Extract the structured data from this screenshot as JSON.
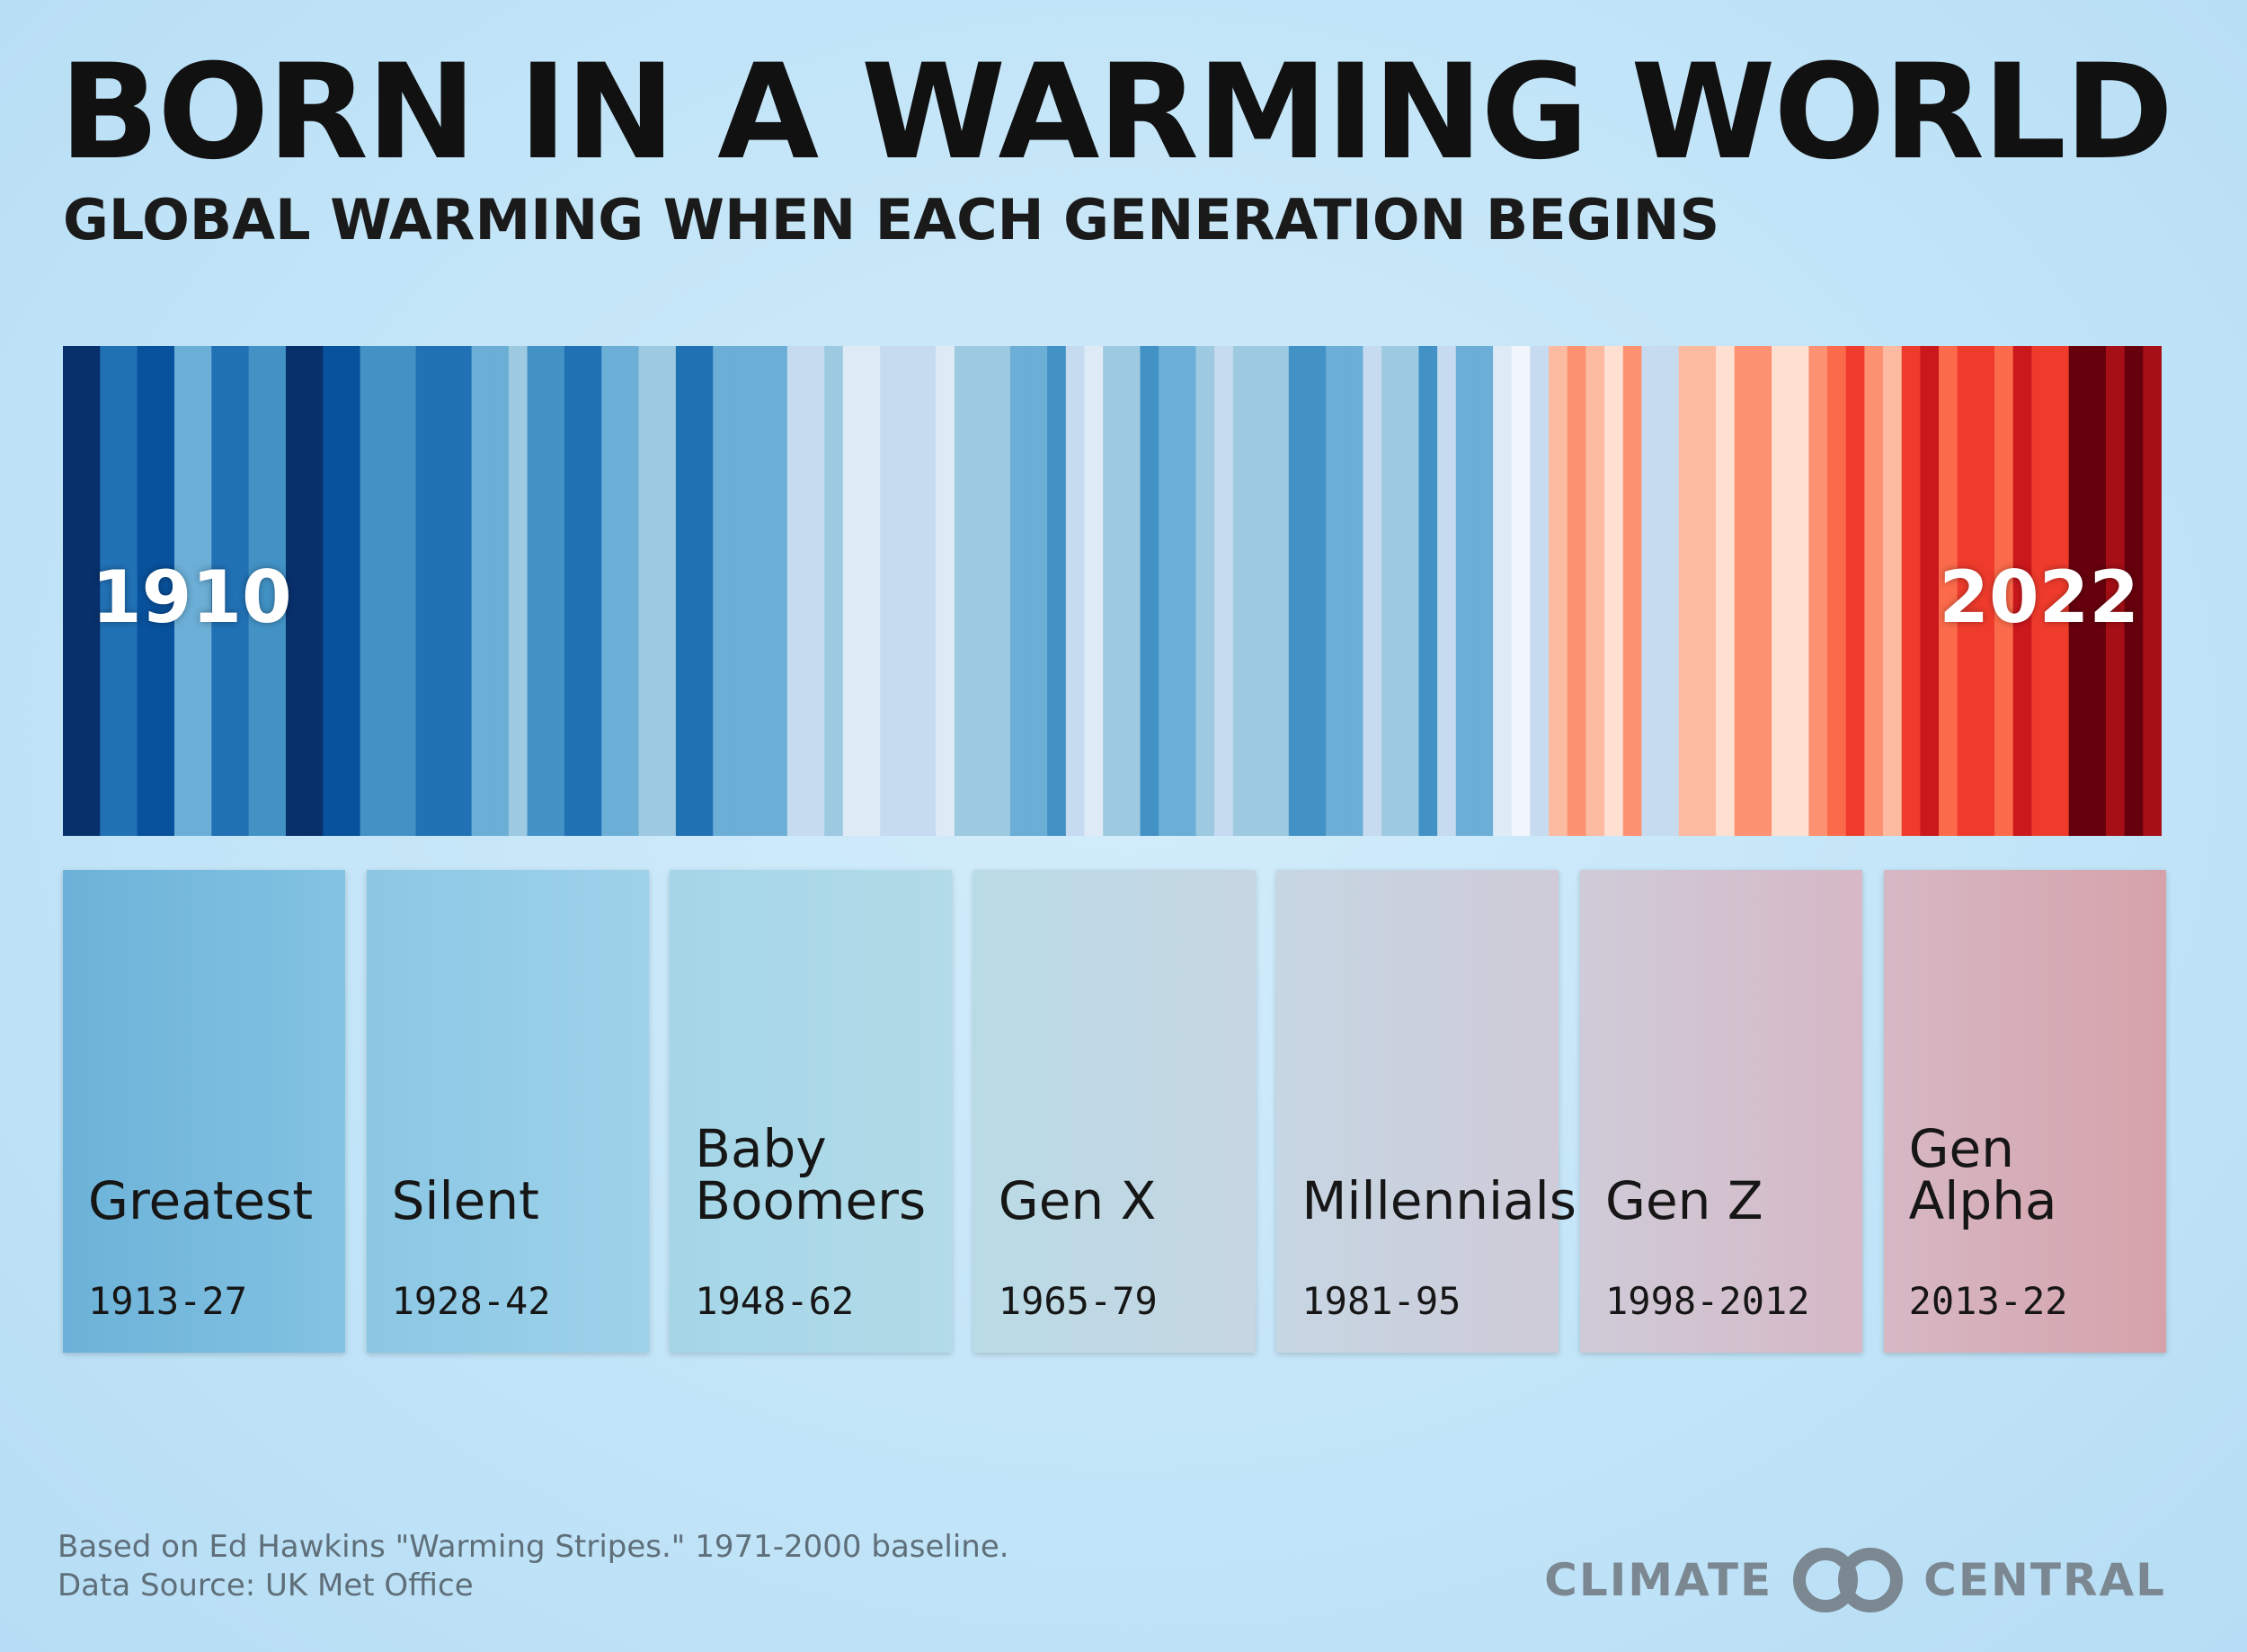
{
  "header": {
    "title": "BORN IN A WARMING WORLD",
    "subtitle": "GLOBAL WARMING WHEN EACH GENERATION BEGINS"
  },
  "chart_data": {
    "type": "heatmap",
    "title": "BORN IN A WARMING WORLD",
    "subtitle": "GLOBAL WARMING WHEN EACH GENERATION BEGINS",
    "x_start_label": "1910",
    "x_end_label": "2022",
    "start_year": 1910,
    "end_year": 2022,
    "stripe_colors": [
      "#08306b",
      "#08306b",
      "#2171b5",
      "#2171b5",
      "#08519c",
      "#08519c",
      "#6baed6",
      "#6baed6",
      "#2171b5",
      "#2171b5",
      "#4292c6",
      "#4292c6",
      "#08306b",
      "#08306b",
      "#08519c",
      "#08519c",
      "#4292c6",
      "#4292c6",
      "#4292c6",
      "#2171b5",
      "#2171b5",
      "#2171b5",
      "#6baed6",
      "#6baed6",
      "#9ecae1",
      "#4292c6",
      "#4292c6",
      "#2171b5",
      "#2171b5",
      "#6baed6",
      "#6baed6",
      "#9ecae1",
      "#9ecae1",
      "#2171b5",
      "#2171b5",
      "#6baed6",
      "#6baed6",
      "#6baed6",
      "#6baed6",
      "#c6dbef",
      "#c6dbef",
      "#9ecae1",
      "#deebf7",
      "#deebf7",
      "#c6dbef",
      "#c6dbef",
      "#c6dbef",
      "#deebf7",
      "#9ecae1",
      "#9ecae1",
      "#9ecae1",
      "#6baed6",
      "#6baed6",
      "#4292c6",
      "#c6dbef",
      "#deebf7",
      "#9ecae1",
      "#9ecae1",
      "#4292c6",
      "#6baed6",
      "#6baed6",
      "#9ecae1",
      "#c6dbef",
      "#9ecae1",
      "#9ecae1",
      "#9ecae1",
      "#4292c6",
      "#4292c6",
      "#6baed6",
      "#6baed6",
      "#c6dbef",
      "#9ecae1",
      "#9ecae1",
      "#4292c6",
      "#c6dbef",
      "#6baed6",
      "#6baed6",
      "#deebf7",
      "#f0f6fb",
      "#c6dbef",
      "#fcbba1",
      "#fc9272",
      "#fcbba1",
      "#fee0d2",
      "#fc9272",
      "#c6dbef",
      "#c6dbef",
      "#fcbba1",
      "#fcbba1",
      "#fee0d2",
      "#fc9272",
      "#fc9272",
      "#fee0d2",
      "#fee0d2",
      "#fc9272",
      "#fb6a4a",
      "#ef3b2c",
      "#fc9272",
      "#fcbba1",
      "#ef3b2c",
      "#cb181d",
      "#fb6a4a",
      "#ef3b2c",
      "#ef3b2c",
      "#fb6a4a",
      "#cb181d",
      "#ef3b2c",
      "#ef3b2c",
      "#67000d",
      "#67000d",
      "#a50f15",
      "#67000d",
      "#a50f15"
    ],
    "generations": [
      {
        "name": "Greatest",
        "years": "1913-27",
        "color_from": "#6cb2d8",
        "color_to": "#83c3e3"
      },
      {
        "name": "Silent",
        "years": "1928-42",
        "color_from": "#8bc7e4",
        "color_to": "#9ed2ea"
      },
      {
        "name": "Baby\nBoomers",
        "years": "1948-62",
        "color_from": "#a4d6e8",
        "color_to": "#b3dbe8"
      },
      {
        "name": "Gen X",
        "years": "1965-79",
        "color_from": "#b9dbe6",
        "color_to": "#c6d6e2"
      },
      {
        "name": "Millennials",
        "years": "1981-95",
        "color_from": "#c6d6e3",
        "color_to": "#cfcbd8"
      },
      {
        "name": "Gen Z",
        "years": "1998-2012",
        "color_from": "#cfcbd8",
        "color_to": "#d6b8c6"
      },
      {
        "name": "Gen\nAlpha",
        "years": "2013-22",
        "color_from": "#d6b8c4",
        "color_to": "#d6a2aa"
      }
    ]
  },
  "footer": {
    "note_line1": "Based on Ed Hawkins \"Warming Stripes.\" 1971-2000 baseline.",
    "note_line2": "Data Source: UK Met Office",
    "logo_left": "CLIMATE",
    "logo_right": "CENTRAL",
    "logo_color": "#7b8891"
  }
}
